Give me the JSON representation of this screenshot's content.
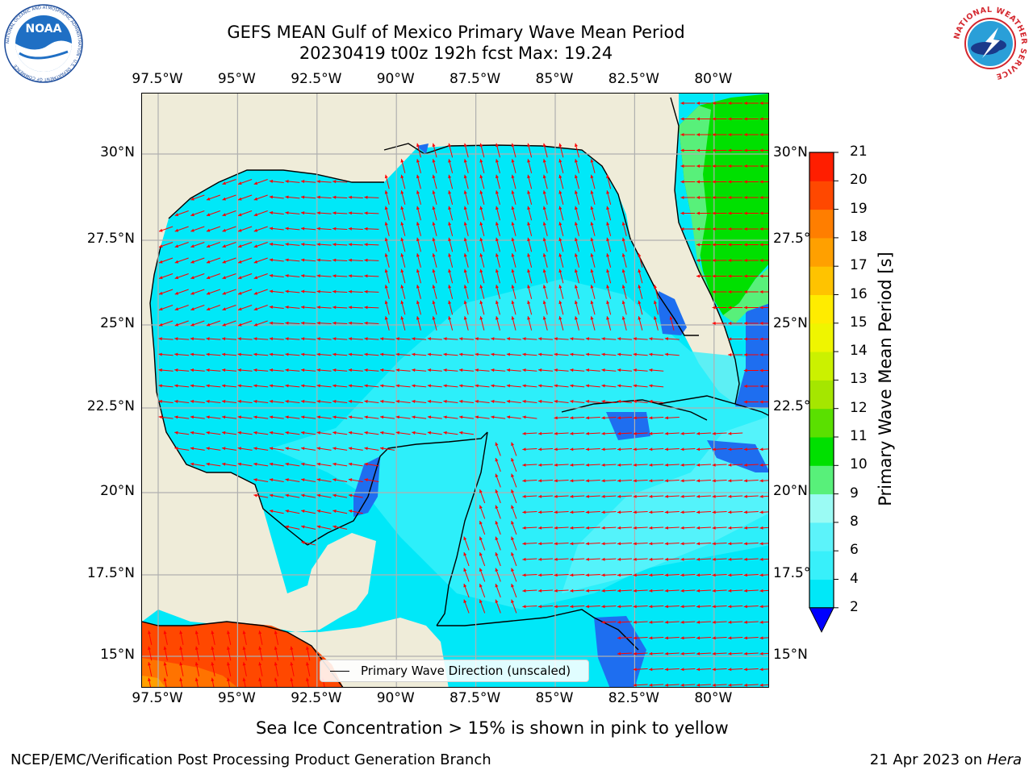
{
  "title_line1": "GEFS MEAN Gulf of Mexico Primary Wave Mean Period",
  "title_line2": "20230419 t00z 192h fcst   Max: 19.24",
  "logos": {
    "noaa_text": "NOAA",
    "noaa_ring": "NATIONAL OCEANIC AND ATMOSPHERIC ADMINISTRATION · U.S. DEPARTMENT OF COMMERCE",
    "nws_ring": "NATIONAL WEATHER SERVICE"
  },
  "map": {
    "lon_labels": [
      "97.5°W",
      "95°W",
      "92.5°W",
      "90°W",
      "87.5°W",
      "85°W",
      "82.5°W",
      "80°W"
    ],
    "lat_labels_left": [
      "30°N",
      "27.5°N",
      "25°N",
      "22.5°N",
      "20°N",
      "17.5°N",
      "15°N"
    ],
    "lat_labels_right": [
      "30°N",
      "27.5°N",
      "25°N",
      "22.5°N",
      "20°N",
      "17.5°N",
      "15°N"
    ],
    "lon_range": [
      -98,
      -78.2
    ],
    "lat_range": [
      14,
      31.8
    ],
    "gridlines": true,
    "land_color": "#efecd9",
    "vector_color": "#ff0000",
    "legend_label": "Primary Wave Direction (unscaled)",
    "legend_placement": "bottom-center"
  },
  "colorbar": {
    "label": "Primary Wave Mean Period [s]",
    "ticks": [
      "2",
      "4",
      "6",
      "8",
      "9",
      "10",
      "11",
      "12",
      "13",
      "14",
      "15",
      "16",
      "17",
      "18",
      "19",
      "20",
      "21"
    ],
    "colors": [
      "#1e6ef0",
      "#00e8f8",
      "#38f0fa",
      "#5cf3fa",
      "#9bfbf4",
      "#58f07a",
      "#00e000",
      "#5ae000",
      "#a5e600",
      "#cbf100",
      "#eff500",
      "#ffec00",
      "#ffc300",
      "#ffa000",
      "#ff7e00",
      "#ff4800",
      "#ff1e00"
    ],
    "under_color": "#0000ff"
  },
  "subtitle": "Sea Ice Concentration > 15% is shown in pink to yellow",
  "footer_left": "NCEP/EMC/Verification Post Processing Product Generation Branch",
  "footer_right_date": "21 Apr 2023 on ",
  "footer_right_host": "Hera"
}
